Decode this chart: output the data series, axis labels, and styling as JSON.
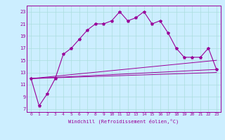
{
  "xlabel": "Windchill (Refroidissement éolien,°C)",
  "bg_color": "#cceeff",
  "line_color": "#990099",
  "grid_color": "#aadddd",
  "xticks": [
    0,
    1,
    2,
    3,
    4,
    5,
    6,
    7,
    8,
    9,
    10,
    11,
    12,
    13,
    14,
    15,
    16,
    17,
    18,
    19,
    20,
    21,
    22,
    23
  ],
  "yticks": [
    7,
    9,
    11,
    13,
    15,
    17,
    19,
    21,
    23
  ],
  "ylim": [
    6.5,
    24.0
  ],
  "xlim": [
    -0.5,
    23.5
  ],
  "dot_x": [
    0,
    1,
    2,
    3,
    4,
    5,
    6,
    7,
    8,
    9,
    10,
    11,
    12,
    13,
    14,
    15,
    16,
    17,
    18,
    19,
    20,
    21,
    22,
    23
  ],
  "dot_y": [
    12.0,
    7.5,
    9.5,
    12.0,
    16.0,
    17.0,
    18.5,
    20.0,
    21.0,
    21.0,
    21.5,
    23.0,
    21.5,
    22.0,
    23.0,
    21.0,
    21.5,
    19.5,
    17.0,
    15.5,
    15.5,
    15.5,
    17.0,
    13.5
  ],
  "line1_x": [
    0,
    23
  ],
  "line1_y": [
    12.0,
    13.5
  ],
  "line2_x": [
    0,
    23
  ],
  "line2_y": [
    12.0,
    15.0
  ],
  "line3_x": [
    0,
    23
  ],
  "line3_y": [
    12.0,
    13.0
  ]
}
